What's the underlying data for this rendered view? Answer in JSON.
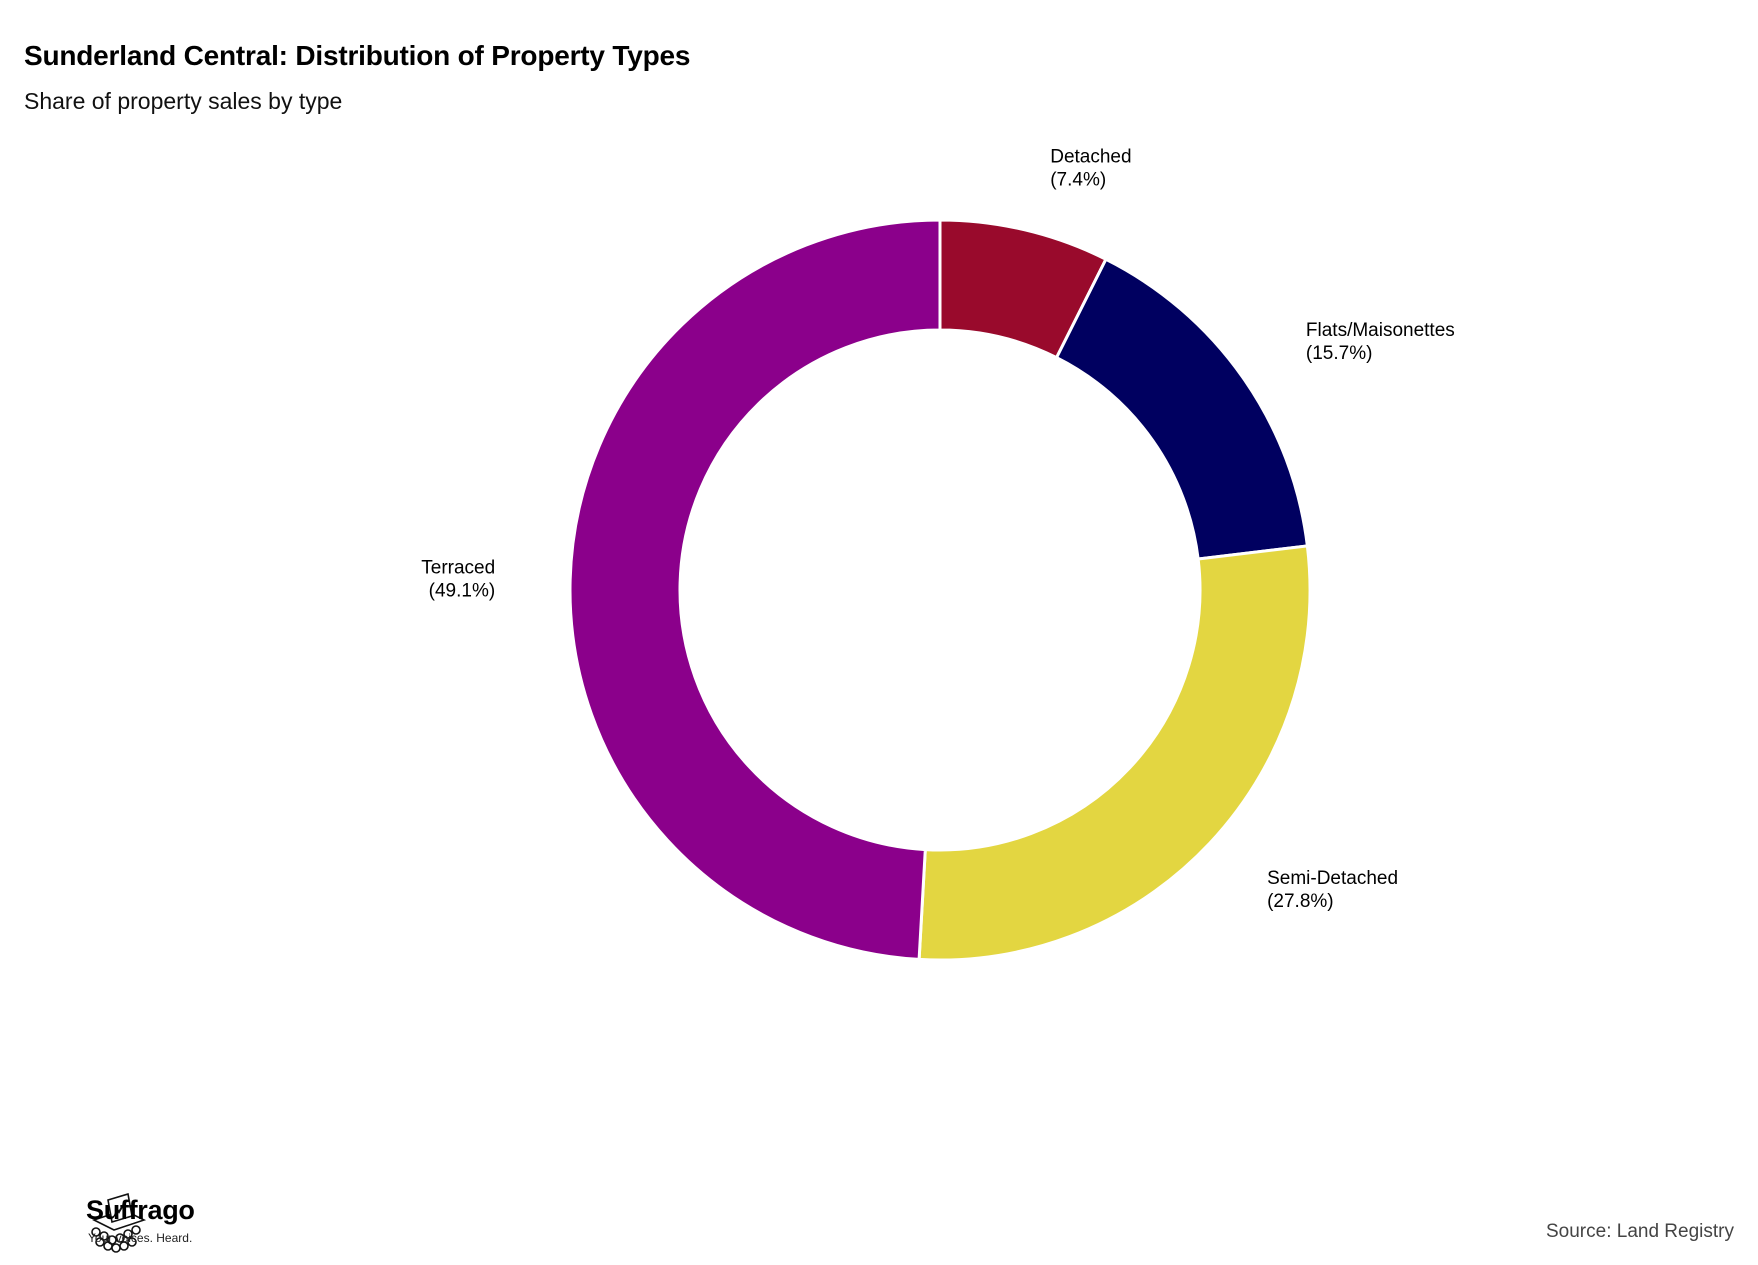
{
  "header": {
    "title": "Sunderland Central: Distribution of Property Types",
    "subtitle": "Share of property sales by type"
  },
  "chart_data": {
    "type": "pie",
    "variant": "donut",
    "title": "Sunderland Central: Distribution of Property Types",
    "subtitle": "Share of property sales by type",
    "unit": "%",
    "slices": [
      {
        "label": "Detached",
        "display": "(7.4%)",
        "value": 7.4,
        "color": "#990a2c"
      },
      {
        "label": "Flats/Maisonettes",
        "display": "(15.7%)",
        "value": 15.7,
        "color": "#000060"
      },
      {
        "label": "Semi-Detached",
        "display": "(27.8%)",
        "value": 27.8,
        "color": "#e3d641"
      },
      {
        "label": "Terraced",
        "display": "(49.1%)",
        "value": 49.1,
        "color": "#8b008b"
      }
    ],
    "legend": "none"
  },
  "footer": {
    "brand_name": "Suffrago",
    "brand_tagline": "Your voices. Heard.",
    "source": "Source: Land Registry",
    "logo_icon": "ballot-box-icon"
  }
}
